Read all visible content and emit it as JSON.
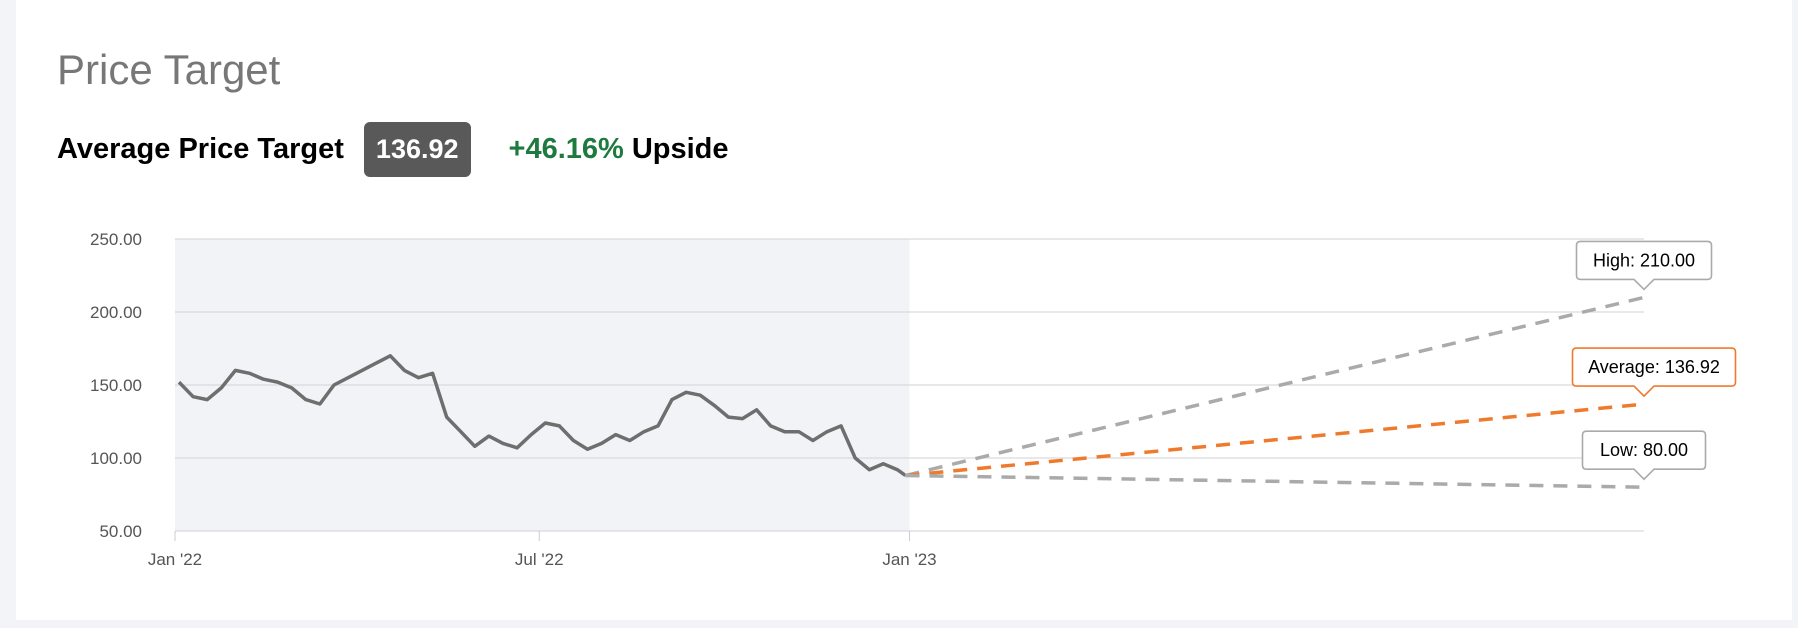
{
  "header": {
    "title": "Price Target",
    "avg_label": "Average Price Target",
    "avg_value": "136.92",
    "upside_pct": "+46.16%",
    "upside_word": "Upside"
  },
  "colors": {
    "price": "#6e6e6e",
    "average": "#f07a2c",
    "range": "#aaaaaa",
    "upside": "#1e7a3f",
    "shade": "#f2f3f7"
  },
  "chart_data": {
    "type": "line",
    "ylim": [
      50,
      250
    ],
    "yticks": [
      "250.00",
      "200.00",
      "150.00",
      "100.00",
      "50.00"
    ],
    "ytick_values": [
      250,
      200,
      150,
      100,
      50
    ],
    "xticks": [
      "Jan '22",
      "Jul '22",
      "Jan '23"
    ],
    "xtick_dates": [
      "2022-01-01",
      "2022-07-01",
      "2023-01-01"
    ],
    "xlim": [
      "2022-01-01",
      "2024-01-01"
    ],
    "grid": true,
    "history_shaded": true,
    "price_series": {
      "dates": [
        "2022-01-03",
        "2022-01-10",
        "2022-01-17",
        "2022-01-24",
        "2022-01-31",
        "2022-02-07",
        "2022-02-14",
        "2022-02-21",
        "2022-02-28",
        "2022-03-07",
        "2022-03-14",
        "2022-03-21",
        "2022-03-28",
        "2022-04-04",
        "2022-04-11",
        "2022-04-18",
        "2022-04-25",
        "2022-05-02",
        "2022-05-09",
        "2022-05-16",
        "2022-05-23",
        "2022-05-30",
        "2022-06-06",
        "2022-06-13",
        "2022-06-20",
        "2022-06-27",
        "2022-07-04",
        "2022-07-11",
        "2022-07-18",
        "2022-07-25",
        "2022-08-01",
        "2022-08-08",
        "2022-08-15",
        "2022-08-22",
        "2022-08-29",
        "2022-09-05",
        "2022-09-12",
        "2022-09-19",
        "2022-09-26",
        "2022-10-03",
        "2022-10-10",
        "2022-10-17",
        "2022-10-24",
        "2022-10-31",
        "2022-11-07",
        "2022-11-14",
        "2022-11-21",
        "2022-11-28",
        "2022-12-05",
        "2022-12-12",
        "2022-12-19",
        "2022-12-26",
        "2022-12-30"
      ],
      "values": [
        152,
        142,
        140,
        148,
        160,
        158,
        154,
        152,
        148,
        140,
        137,
        150,
        155,
        160,
        165,
        170,
        160,
        155,
        158,
        128,
        118,
        108,
        115,
        110,
        107,
        116,
        124,
        122,
        112,
        106,
        110,
        116,
        112,
        118,
        122,
        140,
        145,
        143,
        136,
        128,
        127,
        133,
        122,
        118,
        118,
        112,
        118,
        122,
        100,
        92,
        96,
        92,
        88
      ]
    },
    "targets": [
      {
        "label": "High: 210.00",
        "value": 210.0,
        "date": "2024-01-01"
      },
      {
        "label": "Average: 136.92",
        "value": 136.92,
        "date": "2024-01-01"
      },
      {
        "label": "Low: 80.00",
        "value": 80.0,
        "date": "2024-01-01"
      }
    ],
    "last_price": 93.68
  }
}
